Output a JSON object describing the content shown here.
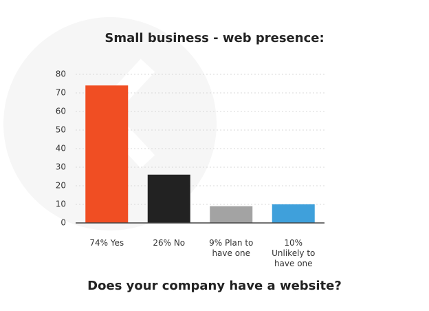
{
  "chart_data": {
    "type": "bar",
    "title": "Small business - web presence:",
    "subtitle": "Does your company have a website?",
    "categories": [
      "74% Yes",
      "26% No",
      "9% Plan to have one",
      "10% Unlikely to have one"
    ],
    "values": [
      74,
      26,
      9,
      10
    ],
    "colors": [
      "#f04e23",
      "#222222",
      "#a3a3a3",
      "#3fa0db"
    ],
    "ylim": [
      0,
      80
    ],
    "yticks": [
      0,
      10,
      20,
      30,
      40,
      50,
      60,
      70,
      80
    ],
    "grid": true
  }
}
